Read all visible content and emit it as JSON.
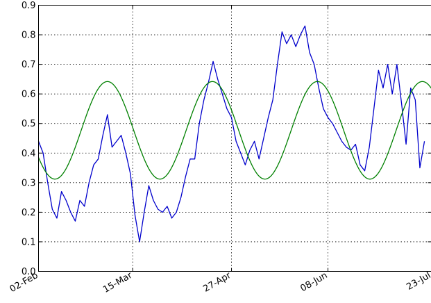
{
  "chart_data": {
    "type": "line",
    "title": "",
    "xlabel": "",
    "ylabel": "",
    "ylim": [
      0.0,
      0.9
    ],
    "xlim": [
      "2013-02-02",
      "2013-07-23"
    ],
    "grid": true,
    "legend": "none",
    "x_ticks": [
      {
        "date": "2013-02-02",
        "label": "02-Feb"
      },
      {
        "date": "2013-03-15",
        "label": "15-Mar"
      },
      {
        "date": "2013-04-27",
        "label": "27-Apr"
      },
      {
        "date": "2013-06-08",
        "label": "08-Jun"
      },
      {
        "date": "2013-07-23",
        "label": "23-Jul"
      }
    ],
    "y_ticks": [
      {
        "value": 0.0,
        "label": "0.0"
      },
      {
        "value": 0.1,
        "label": "0.1"
      },
      {
        "value": 0.2,
        "label": "0.2"
      },
      {
        "value": 0.3,
        "label": "0.3"
      },
      {
        "value": 0.4,
        "label": "0.4"
      },
      {
        "value": 0.5,
        "label": "0.5"
      },
      {
        "value": 0.6,
        "label": "0.6"
      },
      {
        "value": 0.7,
        "label": "0.7"
      },
      {
        "value": 0.8,
        "label": "0.8"
      },
      {
        "value": 0.9,
        "label": "0.9"
      }
    ],
    "series": [
      {
        "color": "#0000cc",
        "x": [
          "2013-02-02",
          "2013-02-04",
          "2013-02-06",
          "2013-02-08",
          "2013-02-10",
          "2013-02-12",
          "2013-02-14",
          "2013-02-16",
          "2013-02-18",
          "2013-02-20",
          "2013-02-22",
          "2013-02-24",
          "2013-02-26",
          "2013-02-28",
          "2013-03-02",
          "2013-03-04",
          "2013-03-06",
          "2013-03-08",
          "2013-03-10",
          "2013-03-12",
          "2013-03-14",
          "2013-03-16",
          "2013-03-18",
          "2013-03-20",
          "2013-03-22",
          "2013-03-24",
          "2013-03-26",
          "2013-03-28",
          "2013-03-30",
          "2013-04-01",
          "2013-04-03",
          "2013-04-05",
          "2013-04-07",
          "2013-04-09",
          "2013-04-11",
          "2013-04-13",
          "2013-04-15",
          "2013-04-17",
          "2013-04-19",
          "2013-04-21",
          "2013-04-23",
          "2013-04-25",
          "2013-04-27",
          "2013-04-29",
          "2013-05-01",
          "2013-05-03",
          "2013-05-05",
          "2013-05-07",
          "2013-05-09",
          "2013-05-11",
          "2013-05-13",
          "2013-05-15",
          "2013-05-17",
          "2013-05-19",
          "2013-05-21",
          "2013-05-23",
          "2013-05-25",
          "2013-05-27",
          "2013-05-29",
          "2013-05-31",
          "2013-06-02",
          "2013-06-04",
          "2013-06-06",
          "2013-06-08",
          "2013-06-10",
          "2013-06-12",
          "2013-06-14",
          "2013-06-16",
          "2013-06-18",
          "2013-06-20",
          "2013-06-22",
          "2013-06-24",
          "2013-06-26",
          "2013-06-28",
          "2013-06-30",
          "2013-07-02",
          "2013-07-04",
          "2013-07-06",
          "2013-07-08",
          "2013-07-10",
          "2013-07-12",
          "2013-07-14",
          "2013-07-16",
          "2013-07-18",
          "2013-07-20"
        ],
        "y": [
          0.44,
          0.4,
          0.3,
          0.21,
          0.18,
          0.27,
          0.24,
          0.2,
          0.17,
          0.24,
          0.22,
          0.3,
          0.36,
          0.38,
          0.46,
          0.53,
          0.42,
          0.44,
          0.46,
          0.4,
          0.33,
          0.19,
          0.1,
          0.2,
          0.29,
          0.24,
          0.21,
          0.2,
          0.22,
          0.18,
          0.2,
          0.25,
          0.32,
          0.38,
          0.38,
          0.5,
          0.58,
          0.64,
          0.71,
          0.65,
          0.6,
          0.55,
          0.52,
          0.44,
          0.4,
          0.36,
          0.41,
          0.44,
          0.38,
          0.45,
          0.52,
          0.58,
          0.7,
          0.81,
          0.77,
          0.8,
          0.76,
          0.8,
          0.83,
          0.74,
          0.7,
          0.62,
          0.55,
          0.52,
          0.5,
          0.47,
          0.44,
          0.42,
          0.41,
          0.43,
          0.36,
          0.34,
          0.42,
          0.55,
          0.68,
          0.62,
          0.7,
          0.6,
          0.7,
          0.57,
          0.43,
          0.62,
          0.58,
          0.35,
          0.44
        ]
      },
      {
        "color": "#008000",
        "x": [
          "2013-02-02",
          "2013-07-23"
        ],
        "model": {
          "type": "sinusoid",
          "mean": 0.477,
          "amplitude": 0.165,
          "period_days": 45.7,
          "peak_date": "2013-03-04"
        }
      }
    ]
  }
}
